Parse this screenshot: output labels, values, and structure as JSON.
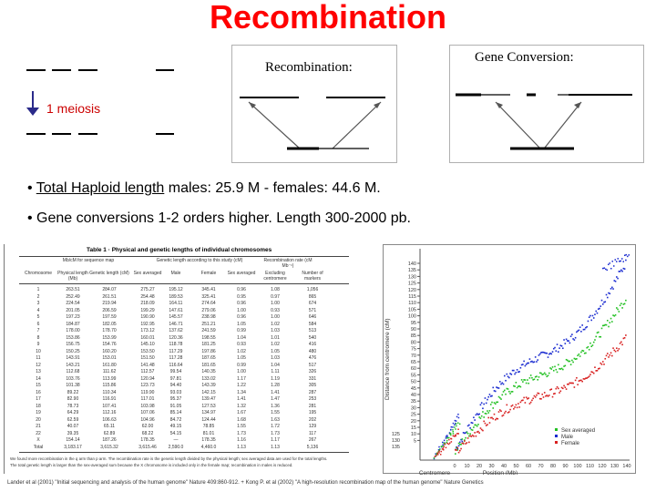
{
  "slide": {
    "title": "Recombination"
  },
  "meiosis": {
    "label": "1 meiosis"
  },
  "boxes": {
    "recombination_label": "Recombination:",
    "conversion_label": "Gene Conversion:"
  },
  "bullets": {
    "b1_prefix": "• ",
    "b1_underlined": "Total Haploid length",
    "b1_rest": "  males: 25.9 M  - females: 44.6 M.",
    "b2": "• Gene conversions 1-2 orders higher.  Length 300-2000 pb."
  },
  "table": {
    "title": "Table 1 · Physical and genetic lengths of individual chromosomes",
    "headers": [
      "Chromosome",
      "Physical length (Mb)",
      "Genetic length (cM)",
      "Sex averaged",
      "Male",
      "Female",
      "Sex averaged",
      "Excluding centromere",
      "Number of markers"
    ],
    "group_headers": [
      "Mb/cM for sequence map",
      "Genetic length according to this study (cM)",
      "Recombination rate (cM Mb⁻¹)"
    ],
    "rows": [
      [
        "1",
        "263.51",
        "284.07",
        "275.27",
        "195.12",
        "345.41",
        "0.96",
        "1.08",
        "1,056"
      ],
      [
        "2",
        "252.49",
        "261.51",
        "254.48",
        "189.53",
        "325.41",
        "0.95",
        "0.97",
        "865"
      ],
      [
        "3",
        "224.54",
        "219.94",
        "218.09",
        "164.11",
        "274.64",
        "0.96",
        "1.00",
        "674"
      ],
      [
        "4",
        "201.05",
        "206.59",
        "199.29",
        "147.61",
        "279.06",
        "1.00",
        "0.93",
        "571"
      ],
      [
        "5",
        "197.23",
        "197.59",
        "190.90",
        "145.57",
        "238.98",
        "0.96",
        "1.00",
        "646"
      ],
      [
        "6",
        "184.87",
        "182.05",
        "192.95",
        "146.71",
        "251.21",
        "1.05",
        "1.02",
        "584"
      ],
      [
        "7",
        "178.00",
        "178.70",
        "173.12",
        "137.62",
        "241.59",
        "0.99",
        "1.03",
        "513"
      ],
      [
        "8",
        "153.86",
        "153.99",
        "160.01",
        "120.36",
        "198.55",
        "1.04",
        "1.01",
        "540"
      ],
      [
        "9",
        "156.75",
        "154.76",
        "145.10",
        "118.78",
        "181.25",
        "0.93",
        "1.02",
        "416"
      ],
      [
        "10",
        "150.25",
        "160.20",
        "153.50",
        "117.29",
        "197.86",
        "1.02",
        "1.05",
        "480"
      ],
      [
        "11",
        "143.91",
        "153.01",
        "151.50",
        "117.28",
        "187.65",
        "1.05",
        "1.03",
        "476"
      ],
      [
        "12",
        "143.21",
        "161.80",
        "141.48",
        "116.64",
        "181.65",
        "0.99",
        "1.04",
        "517"
      ],
      [
        "13",
        "112.68",
        "111.62",
        "112.57",
        "99.54",
        "140.35",
        "1.00",
        "1.11",
        "326"
      ],
      [
        "14",
        "103.76",
        "113.99",
        "120.94",
        "97.81",
        "133.02",
        "1.17",
        "1.19",
        "331"
      ],
      [
        "15",
        "101.38",
        "115.86",
        "123.73",
        "94.40",
        "143.39",
        "1.22",
        "1.28",
        "305"
      ],
      [
        "16",
        "89.22",
        "110.34",
        "119.90",
        "93.03",
        "142.15",
        "1.34",
        "1.41",
        "287"
      ],
      [
        "17",
        "82.90",
        "116.91",
        "117.01",
        "95.37",
        "139.47",
        "1.41",
        "1.47",
        "253"
      ],
      [
        "18",
        "78.73",
        "107.41",
        "103.98",
        "91.05",
        "127.53",
        "1.32",
        "1.36",
        "281"
      ],
      [
        "19",
        "64.29",
        "112.16",
        "107.06",
        "85.14",
        "134.97",
        "1.67",
        "1.55",
        "195"
      ],
      [
        "20",
        "62.59",
        "106.63",
        "104.96",
        "84.72",
        "124.44",
        "1.68",
        "1.63",
        "202"
      ],
      [
        "21",
        "40.07",
        "65.11",
        "62.00",
        "49.15",
        "78.85",
        "1.55",
        "1.72",
        "129"
      ],
      [
        "22",
        "39.35",
        "62.89",
        "68.22",
        "54.15",
        "81.01",
        "1.73",
        "1.73",
        "117"
      ],
      [
        "X",
        "154.14",
        "187.26",
        "178.35",
        "—",
        "178.35",
        "1.16",
        "1.17",
        "267"
      ],
      [
        "Total",
        "3,183.17",
        "3,615.32",
        "3,615.46",
        "2,590.0",
        "4,460.0",
        "1.13",
        "1.13",
        "5,136"
      ]
    ],
    "footnote": "We found more recombination in the q arm than p arm. The recombination rate is the genetic length divided by the physical length; sex averaged data are used for the total lengths.",
    "footnote2": "The total genetic length is larger than the sex-averaged sum because the X chromosome is included only in the female map; recombination in males is reduced."
  },
  "plot": {
    "ylabel": "Distance from centromere (cM)",
    "xlabel_left": "Centromere",
    "xlabel_right": "Position (Mb)",
    "yticks_upper": [
      "140",
      "135",
      "130",
      "125",
      "120",
      "115",
      "110",
      "105",
      "100",
      "95",
      "90",
      "85",
      "80",
      "75",
      "70",
      "65",
      "60",
      "55",
      "50",
      "45",
      "40",
      "35",
      "30",
      "25",
      "20",
      "15",
      "10",
      "5"
    ],
    "yticks_lower": [
      "125",
      "130",
      "135"
    ],
    "xticks": [
      "0",
      "10",
      "20",
      "30",
      "40",
      "50",
      "60",
      "70",
      "80",
      "90",
      "100",
      "110",
      "120",
      "130",
      "140"
    ],
    "legend": [
      "Sex averaged",
      "Male",
      "Female"
    ],
    "colors": {
      "sex_averaged": "#22c022",
      "male": "#1a2bd0",
      "female": "#d82020"
    }
  },
  "citation": "Lander et al (2001) \"Initial sequencing and analysis of the human genome\" Nature 409:860-912.  +  Kong P. et al (2002) \"A high-resolution recombination map of the human genome\" Nature Genetics"
}
